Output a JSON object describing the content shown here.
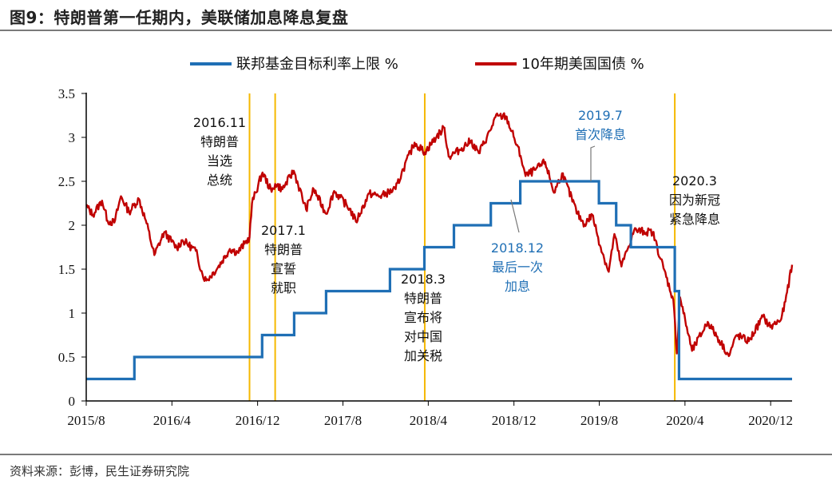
{
  "title": "图9：特朗普第一任期内，美联储加息降息复盘",
  "source": "资料来源：彭博，民生证券研究院",
  "colors": {
    "ffr": "#1f6fb5",
    "ust10y": "#c00000",
    "vline": "#f5b800",
    "axis": "#000000"
  },
  "chart_data": {
    "type": "line",
    "ylim": [
      0,
      3.5
    ],
    "y_ticks": [
      "0",
      "0.5",
      "1",
      "1.5",
      "2",
      "2.5",
      "3",
      "3.5"
    ],
    "x_ticks": [
      "2015/8",
      "2016/4",
      "2016/12",
      "2017/8",
      "2018/4",
      "2018/12",
      "2019/8",
      "2020/4",
      "2020/12"
    ],
    "x_range": [
      "2015-08-01",
      "2021-01-31"
    ],
    "legend": [
      "联邦基金目标利率上限 %",
      "10年期美国国债 %"
    ],
    "series": [
      {
        "name": "联邦基金目标利率上限 %",
        "step": true,
        "points": [
          [
            "2015-08-01",
            0.25
          ],
          [
            "2015-12-16",
            0.5
          ],
          [
            "2016-12-14",
            0.75
          ],
          [
            "2017-03-15",
            1.0
          ],
          [
            "2017-06-14",
            1.25
          ],
          [
            "2017-12-13",
            1.5
          ],
          [
            "2018-03-21",
            1.75
          ],
          [
            "2018-06-13",
            2.0
          ],
          [
            "2018-09-26",
            2.25
          ],
          [
            "2018-12-19",
            2.5
          ],
          [
            "2019-07-31",
            2.25
          ],
          [
            "2019-09-18",
            2.0
          ],
          [
            "2019-10-30",
            1.75
          ],
          [
            "2020-03-03",
            1.25
          ],
          [
            "2020-03-15",
            0.25
          ],
          [
            "2021-01-31",
            0.25
          ]
        ]
      },
      {
        "name": "10年期美国国债 %",
        "points": [
          [
            "2015-08-01",
            2.22
          ],
          [
            "2015-08-20",
            2.12
          ],
          [
            "2015-09-15",
            2.28
          ],
          [
            "2015-10-01",
            2.05
          ],
          [
            "2015-10-20",
            2.03
          ],
          [
            "2015-11-08",
            2.33
          ],
          [
            "2015-12-01",
            2.15
          ],
          [
            "2015-12-29",
            2.3
          ],
          [
            "2016-01-20",
            2.02
          ],
          [
            "2016-02-11",
            1.66
          ],
          [
            "2016-03-10",
            1.92
          ],
          [
            "2016-04-15",
            1.74
          ],
          [
            "2016-05-01",
            1.83
          ],
          [
            "2016-06-08",
            1.71
          ],
          [
            "2016-06-27",
            1.44
          ],
          [
            "2016-07-08",
            1.37
          ],
          [
            "2016-08-10",
            1.52
          ],
          [
            "2016-09-13",
            1.73
          ],
          [
            "2016-10-05",
            1.69
          ],
          [
            "2016-10-25",
            1.79
          ],
          [
            "2016-11-08",
            1.86
          ],
          [
            "2016-11-15",
            2.25
          ],
          [
            "2016-12-15",
            2.6
          ],
          [
            "2017-01-10",
            2.38
          ],
          [
            "2017-01-20",
            2.47
          ],
          [
            "2017-02-10",
            2.41
          ],
          [
            "2017-03-14",
            2.62
          ],
          [
            "2017-04-18",
            2.18
          ],
          [
            "2017-05-10",
            2.41
          ],
          [
            "2017-06-14",
            2.13
          ],
          [
            "2017-07-07",
            2.39
          ],
          [
            "2017-08-20",
            2.19
          ],
          [
            "2017-09-07",
            2.04
          ],
          [
            "2017-10-15",
            2.36
          ],
          [
            "2017-11-15",
            2.33
          ],
          [
            "2017-12-29",
            2.41
          ],
          [
            "2018-01-20",
            2.64
          ],
          [
            "2018-02-21",
            2.94
          ],
          [
            "2018-03-22",
            2.83
          ],
          [
            "2018-04-25",
            3.01
          ],
          [
            "2018-05-17",
            3.11
          ],
          [
            "2018-05-29",
            2.78
          ],
          [
            "2018-06-30",
            2.86
          ],
          [
            "2018-07-31",
            2.96
          ],
          [
            "2018-08-23",
            2.82
          ],
          [
            "2018-09-25",
            3.08
          ],
          [
            "2018-10-09",
            3.23
          ],
          [
            "2018-11-08",
            3.24
          ],
          [
            "2018-11-30",
            3.01
          ],
          [
            "2018-12-20",
            2.79
          ],
          [
            "2019-01-03",
            2.56
          ],
          [
            "2019-01-31",
            2.63
          ],
          [
            "2019-02-28",
            2.72
          ],
          [
            "2019-03-25",
            2.37
          ],
          [
            "2019-04-17",
            2.59
          ],
          [
            "2019-05-31",
            2.13
          ],
          [
            "2019-06-20",
            2.01
          ],
          [
            "2019-07-12",
            2.12
          ],
          [
            "2019-08-05",
            1.75
          ],
          [
            "2019-08-28",
            1.47
          ],
          [
            "2019-09-13",
            1.9
          ],
          [
            "2019-10-03",
            1.53
          ],
          [
            "2019-11-08",
            1.94
          ],
          [
            "2019-12-31",
            1.92
          ],
          [
            "2020-01-31",
            1.51
          ],
          [
            "2020-02-28",
            1.15
          ],
          [
            "2020-03-09",
            0.54
          ],
          [
            "2020-03-18",
            1.18
          ],
          [
            "2020-04-21",
            0.57
          ],
          [
            "2020-06-05",
            0.9
          ],
          [
            "2020-07-30",
            0.55
          ],
          [
            "2020-08-04",
            0.51
          ],
          [
            "2020-08-26",
            0.75
          ],
          [
            "2020-09-30",
            0.68
          ],
          [
            "2020-11-09",
            0.96
          ],
          [
            "2020-11-30",
            0.84
          ],
          [
            "2020-12-31",
            0.93
          ],
          [
            "2021-01-12",
            1.13
          ],
          [
            "2021-01-31",
            1.55
          ]
        ]
      }
    ],
    "vlines": [
      "2016-11-08",
      "2017-01-20",
      "2018-03-22",
      "2020-03-03"
    ],
    "annotations": [
      {
        "lines": [
          "2016.11",
          "特朗普",
          "当选",
          "总统"
        ],
        "color": "black"
      },
      {
        "lines": [
          "2017.1",
          "特朗普",
          "宣誓",
          "就职"
        ],
        "color": "black"
      },
      {
        "lines": [
          "2018.3",
          "特朗普",
          "宣布将",
          "对中国",
          "加关税"
        ],
        "color": "black"
      },
      {
        "lines": [
          "2019.7",
          "首次降息"
        ],
        "color": "blue"
      },
      {
        "lines": [
          "2018.12",
          "最后一次",
          "加息"
        ],
        "color": "blue"
      },
      {
        "lines": [
          "2020.3",
          "因为新冠",
          "紧急降息"
        ],
        "color": "black"
      }
    ]
  }
}
